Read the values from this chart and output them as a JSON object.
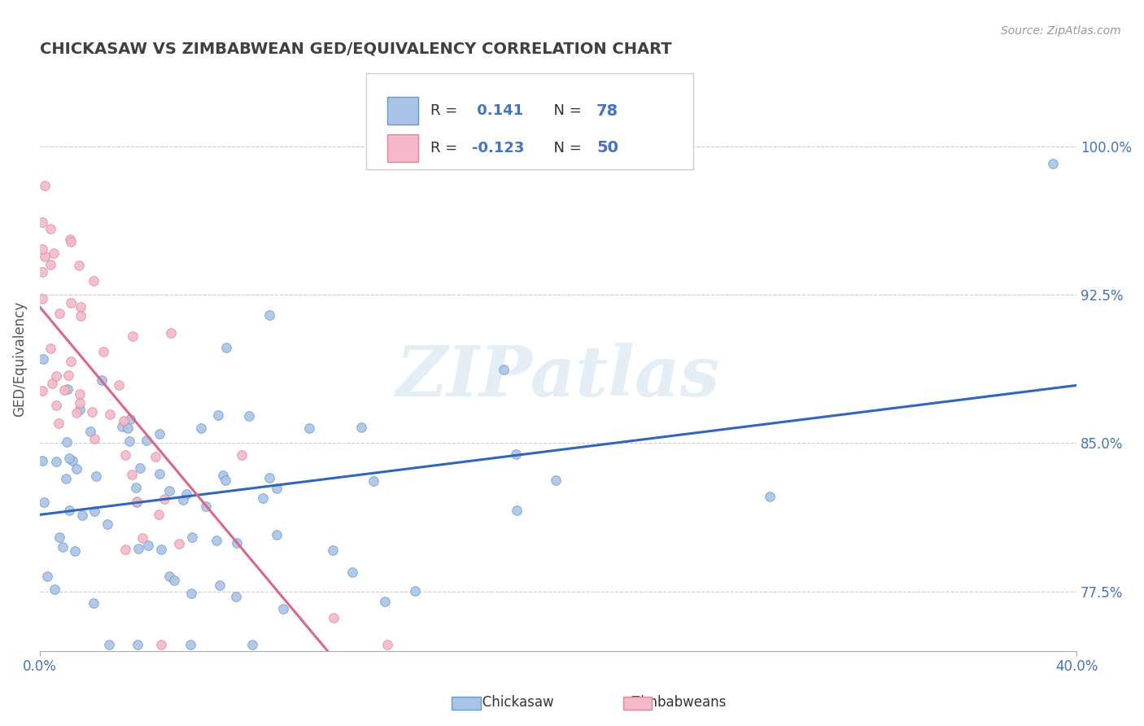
{
  "title": "CHICKASAW VS ZIMBABWEAN GED/EQUIVALENCY CORRELATION CHART",
  "source": "Source: ZipAtlas.com",
  "ylabel": "GED/Equivalency",
  "ytick_labels": [
    "77.5%",
    "85.0%",
    "92.5%",
    "100.0%"
  ],
  "ytick_values": [
    0.775,
    0.85,
    0.925,
    1.0
  ],
  "xmin": 0.0,
  "xmax": 0.4,
  "ymin": 0.745,
  "ymax": 1.04,
  "chickasaw_R": 0.141,
  "chickasaw_N": 78,
  "zimbabwe_R": -0.123,
  "zimbabwe_N": 50,
  "chickasaw_dot_color": "#aac4e8",
  "chickasaw_edge_color": "#6699cc",
  "chickasaw_line_color": "#3366bb",
  "zimbabwe_dot_color": "#f4b8c8",
  "zimbabwe_edge_color": "#dd8899",
  "zimbabwe_line_color": "#dd6688",
  "title_color": "#404040",
  "source_color": "#999999",
  "blue_text_color": "#4472c4",
  "watermark": "ZIPatlas",
  "legend_r_label": "R = ",
  "legend_n_label": "N = "
}
